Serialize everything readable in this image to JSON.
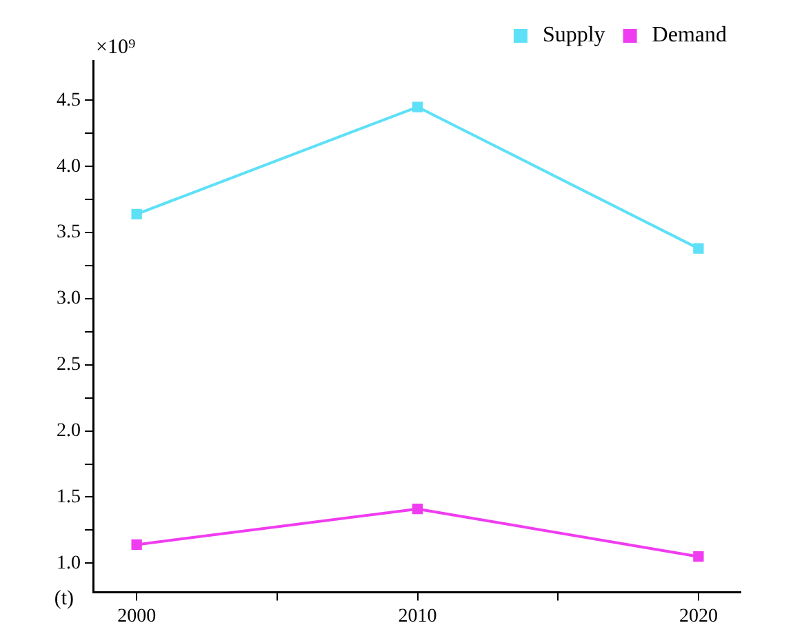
{
  "chart_data": {
    "type": "line",
    "ylabel": "(t)",
    "annotations": [
      "×10⁹"
    ],
    "x": [
      2000,
      2010,
      2020
    ],
    "series": [
      {
        "name": "Supply",
        "color": "#5ee0f7",
        "values": [
          3.64,
          4.45,
          3.38
        ]
      },
      {
        "name": "Demand",
        "color": "#f03cf0",
        "values": [
          1.14,
          1.41,
          1.05
        ]
      }
    ],
    "xlim": [
      1998.45,
      2021.5
    ],
    "xticks": [
      2000,
      {
        "value": 2005,
        "label": null
      },
      2010,
      {
        "value": 2015,
        "label": null
      },
      2020
    ],
    "ylim": [
      0.78,
      4.8
    ],
    "yticks": [
      {
        "value": 1,
        "label": "1.0"
      },
      {
        "value": 1.25,
        "label": null
      },
      {
        "value": 1.5,
        "label": "1.5"
      },
      {
        "value": 1.75,
        "label": null
      },
      {
        "value": 2,
        "label": "2.0"
      },
      {
        "value": 2.25,
        "label": null
      },
      {
        "value": 2.5,
        "label": "2.5"
      },
      {
        "value": 2.75,
        "label": null
      },
      {
        "value": 3,
        "label": "3.0"
      },
      {
        "value": 3.25,
        "label": null
      },
      {
        "value": 3.5,
        "label": "3.5"
      },
      {
        "value": 3.75,
        "label": null
      },
      {
        "value": 4,
        "label": "4.0"
      },
      {
        "value": 4.25,
        "label": null
      },
      {
        "value": 4.5,
        "label": "4.5"
      }
    ],
    "legend": "top right",
    "marker": "square",
    "line_style": "solid"
  }
}
